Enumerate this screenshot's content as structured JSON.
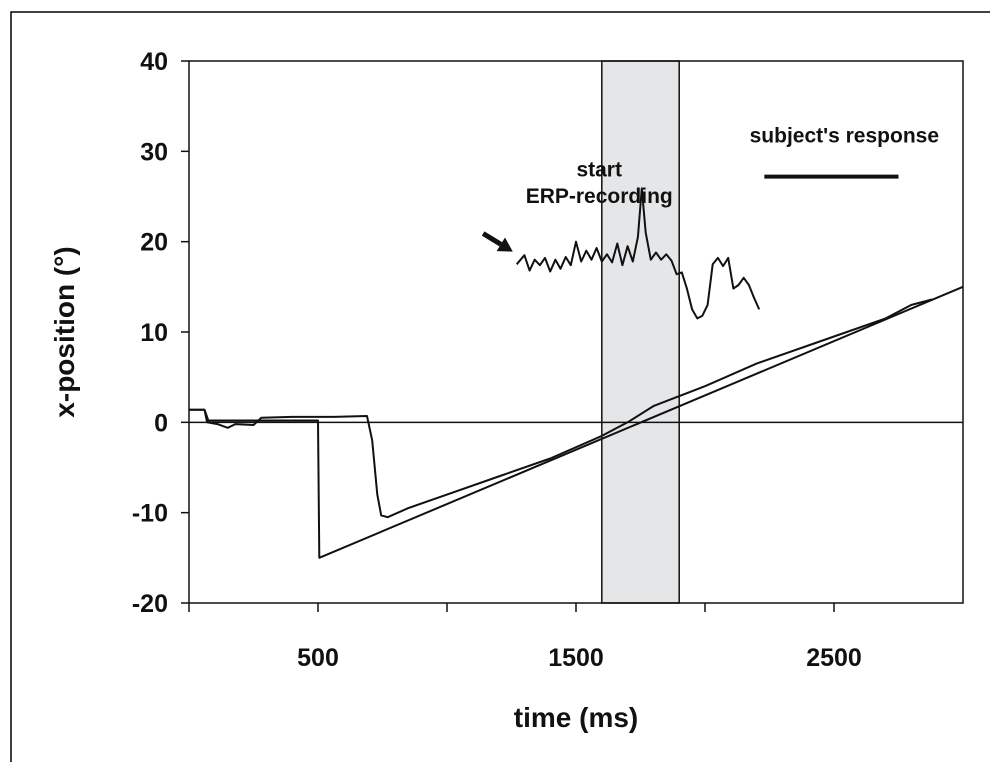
{
  "chart_data": {
    "type": "line",
    "title": "",
    "xlabel": "time (ms)",
    "ylabel": "x-position (°)",
    "xlim": [
      0,
      3000
    ],
    "ylim": [
      -20,
      40
    ],
    "x_ticks": [
      0,
      500,
      1000,
      1500,
      2000,
      2500
    ],
    "x_tick_labels": [
      "500",
      "1500",
      "2500"
    ],
    "x_tick_label_values": [
      500,
      1500,
      2500
    ],
    "y_ticks": [
      -20,
      -10,
      0,
      10,
      20,
      30,
      40
    ],
    "y_tick_labels": [
      "-20",
      "-10",
      "0",
      "10",
      "20",
      "30",
      "40"
    ],
    "grid": false,
    "zero_line": 0,
    "shaded_region": {
      "x_start": 1600,
      "x_end": 1900,
      "color": "#e5e6e8"
    },
    "series": [
      {
        "role": "target",
        "values": [
          [
            0,
            1.4
          ],
          [
            60,
            1.4
          ],
          [
            75,
            0.2
          ],
          [
            500,
            0.2
          ],
          [
            505,
            -15.0
          ],
          [
            3000,
            15.0
          ]
        ]
      },
      {
        "role": "eye",
        "values": [
          [
            0,
            1.4
          ],
          [
            60,
            1.4
          ],
          [
            70,
            0.0
          ],
          [
            110,
            -0.2
          ],
          [
            150,
            -0.6
          ],
          [
            180,
            -0.2
          ],
          [
            250,
            -0.3
          ],
          [
            280,
            0.5
          ],
          [
            400,
            0.6
          ],
          [
            500,
            0.6
          ],
          [
            560,
            0.6
          ],
          [
            690,
            0.7
          ],
          [
            710,
            -2.0
          ],
          [
            730,
            -8.0
          ],
          [
            745,
            -10.3
          ],
          [
            770,
            -10.5
          ],
          [
            850,
            -9.5
          ],
          [
            1000,
            -8.0
          ],
          [
            1200,
            -6.0
          ],
          [
            1400,
            -4.0
          ],
          [
            1600,
            -1.5
          ],
          [
            1700,
            0.0
          ],
          [
            1800,
            1.8
          ],
          [
            2000,
            4.0
          ],
          [
            2200,
            6.5
          ],
          [
            2500,
            9.5
          ],
          [
            2700,
            11.5
          ],
          [
            2800,
            13.0
          ],
          [
            2880,
            13.6
          ]
        ]
      },
      {
        "role": "erp-eye-signal",
        "values": [
          [
            1270,
            17.5
          ],
          [
            1300,
            18.5
          ],
          [
            1320,
            16.8
          ],
          [
            1340,
            18.0
          ],
          [
            1360,
            17.4
          ],
          [
            1380,
            18.2
          ],
          [
            1400,
            16.7
          ],
          [
            1420,
            18.0
          ],
          [
            1440,
            17.0
          ],
          [
            1460,
            18.3
          ],
          [
            1480,
            17.4
          ],
          [
            1500,
            20.0
          ],
          [
            1520,
            17.8
          ],
          [
            1540,
            19.0
          ],
          [
            1560,
            18.0
          ],
          [
            1580,
            19.3
          ],
          [
            1600,
            17.8
          ],
          [
            1620,
            18.6
          ],
          [
            1640,
            17.7
          ],
          [
            1660,
            19.8
          ],
          [
            1680,
            17.4
          ],
          [
            1700,
            19.5
          ],
          [
            1720,
            17.8
          ],
          [
            1740,
            20.5
          ],
          [
            1755,
            25.9
          ],
          [
            1770,
            21.0
          ],
          [
            1790,
            18.0
          ],
          [
            1810,
            18.8
          ],
          [
            1830,
            18.0
          ],
          [
            1850,
            18.6
          ],
          [
            1870,
            17.9
          ],
          [
            1890,
            16.4
          ],
          [
            1910,
            16.6
          ],
          [
            1930,
            14.8
          ],
          [
            1950,
            12.5
          ],
          [
            1970,
            11.5
          ],
          [
            1990,
            11.8
          ],
          [
            2010,
            13.0
          ],
          [
            2030,
            17.5
          ],
          [
            2050,
            18.2
          ],
          [
            2070,
            17.3
          ],
          [
            2090,
            18.2
          ],
          [
            2110,
            14.8
          ],
          [
            2130,
            15.2
          ],
          [
            2150,
            16.0
          ],
          [
            2170,
            15.2
          ],
          [
            2190,
            13.8
          ],
          [
            2210,
            12.5
          ]
        ]
      }
    ],
    "annotations": [
      {
        "text": "start",
        "x": 1590,
        "y": 27.2
      },
      {
        "text": "ERP-recording",
        "x": 1590,
        "y": 24.3
      },
      {
        "text": "subject's response",
        "x": 2540,
        "y": 31.0
      }
    ],
    "arrow": {
      "from": [
        1140,
        20.9
      ],
      "to": [
        1255,
        18.9
      ]
    },
    "response_bar": {
      "x_start": 2230,
      "x_end": 2750,
      "y": 27.2
    }
  }
}
